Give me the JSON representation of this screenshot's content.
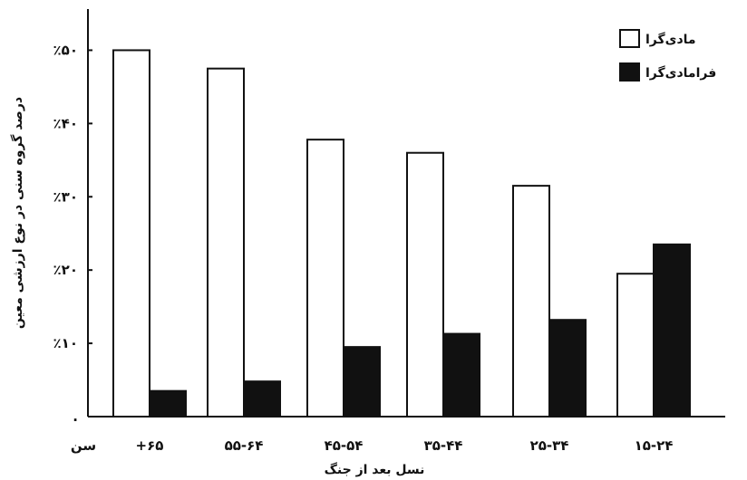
{
  "chart_data": {
    "type": "bar",
    "categories": [
      "+۶۵",
      "۵۵-۶۴",
      "۴۵-۵۴",
      "۳۵-۴۴",
      "۲۵-۳۴",
      "۱۵-۲۴"
    ],
    "series": [
      {
        "name": "مادی‌گرا",
        "values": [
          50,
          47.5,
          37.8,
          36,
          31.5,
          19.5
        ],
        "color": "#ffffff"
      },
      {
        "name": "فرامادی‌گرا",
        "values": [
          3.5,
          4.8,
          9.5,
          11.3,
          13.2,
          23.5
        ],
        "color": "#111111"
      }
    ],
    "yticks": [
      {
        "value": 0,
        "label": "."
      },
      {
        "value": 10,
        "label": "٪۱۰"
      },
      {
        "value": 20,
        "label": "٪۲۰"
      },
      {
        "value": 30,
        "label": "٪۳۰"
      },
      {
        "value": 40,
        "label": "٪۴۰"
      },
      {
        "value": 50,
        "label": "٪۵۰"
      }
    ],
    "ylim": [
      0,
      55
    ],
    "ylabel": "درصد گروه سنی در نوع ارزشی معین",
    "xlabel": "نسل بعد از جنگ",
    "x_prefix": "سن",
    "legend_position": "top-right"
  }
}
